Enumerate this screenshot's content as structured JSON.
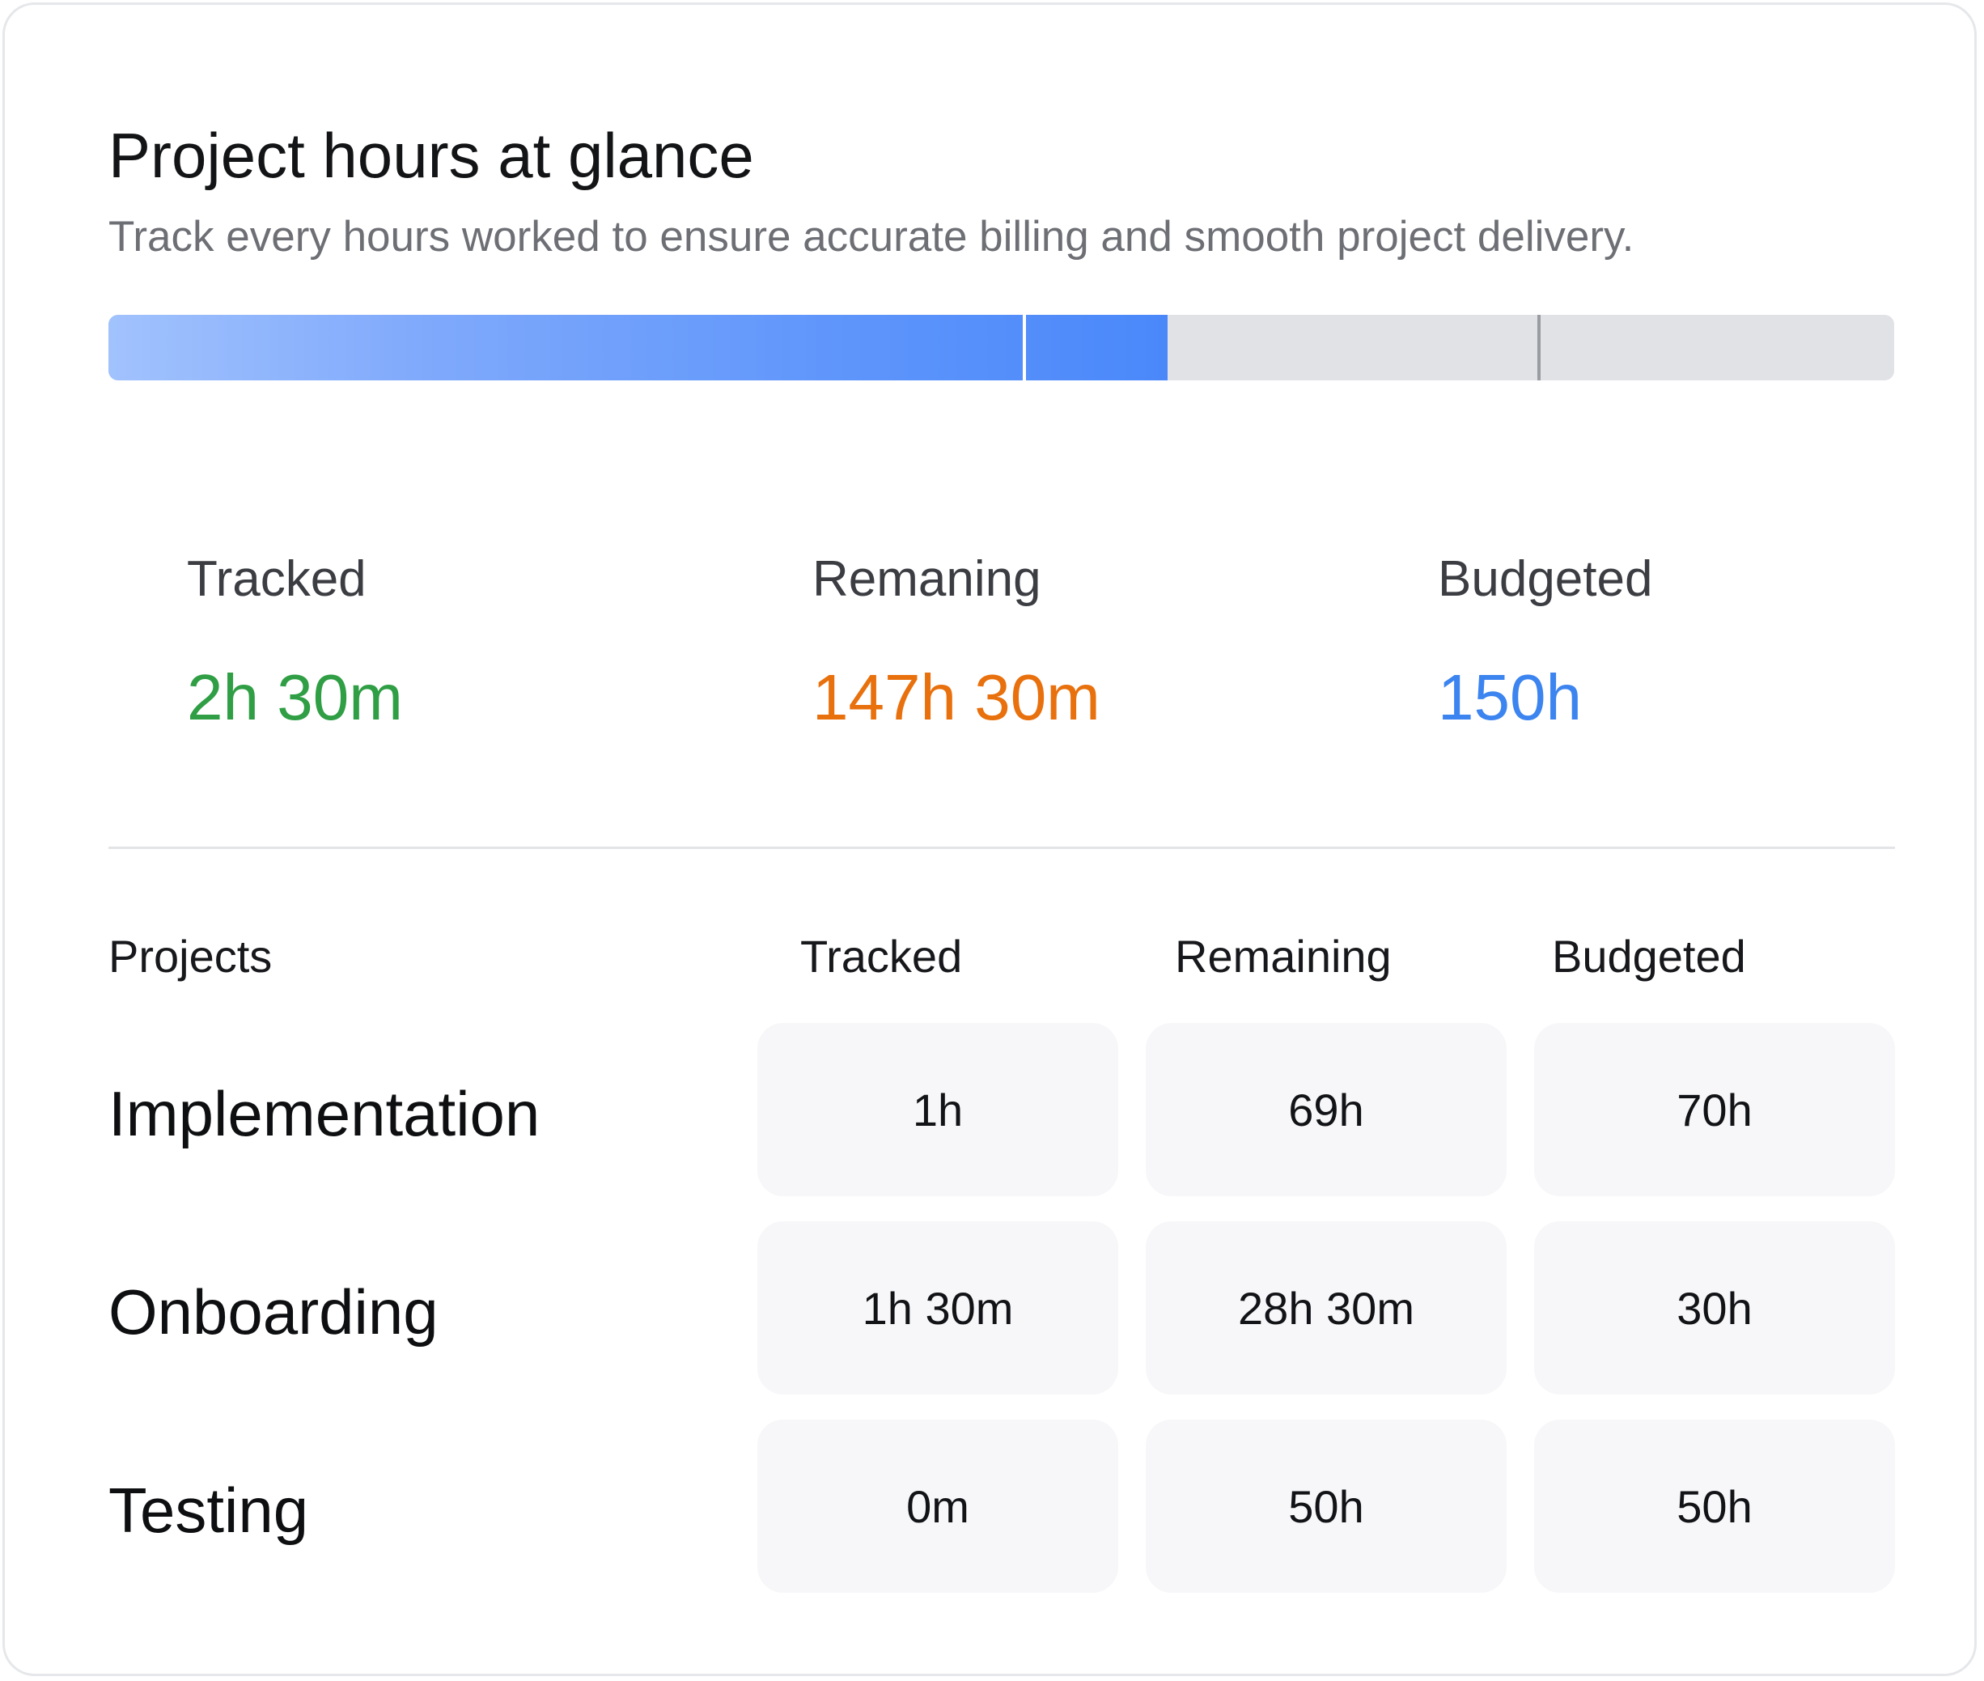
{
  "header": {
    "title": "Project hours at glance",
    "subtitle": "Track every hours worked to ensure accurate billing and smooth project delivery."
  },
  "progress": {
    "segments_fraction": [
      0.512,
      0.081
    ],
    "fill_fraction": 0.593,
    "marker_fraction": 0.8
  },
  "summary": {
    "tracked": {
      "label": "Tracked",
      "value": "2h 30m",
      "color": "#2f9e44"
    },
    "remaining": {
      "label": "Remaning",
      "value": "147h 30m",
      "color": "#e8700d"
    },
    "budgeted": {
      "label": "Budgeted",
      "value": "150h",
      "color": "#3c84ef"
    }
  },
  "table": {
    "headers": [
      "Projects",
      "Tracked",
      "Remaining",
      "Budgeted"
    ],
    "rows": [
      {
        "name": "Implementation",
        "tracked": "1h",
        "remaining": "69h",
        "budgeted": "70h"
      },
      {
        "name": "Onboarding",
        "tracked": "1h 30m",
        "remaining": "28h 30m",
        "budgeted": "30h"
      },
      {
        "name": "Testing",
        "tracked": "0m",
        "remaining": "50h",
        "budgeted": "50h"
      }
    ]
  }
}
